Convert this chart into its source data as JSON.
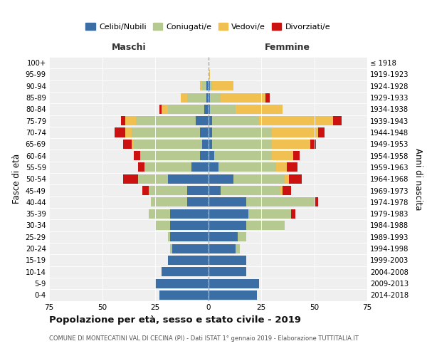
{
  "age_groups": [
    "0-4",
    "5-9",
    "10-14",
    "15-19",
    "20-24",
    "25-29",
    "30-34",
    "35-39",
    "40-44",
    "45-49",
    "50-54",
    "55-59",
    "60-64",
    "65-69",
    "70-74",
    "75-79",
    "80-84",
    "85-89",
    "90-94",
    "95-99",
    "100+"
  ],
  "birth_years": [
    "2014-2018",
    "2009-2013",
    "2004-2008",
    "1999-2003",
    "1994-1998",
    "1989-1993",
    "1984-1988",
    "1979-1983",
    "1974-1978",
    "1969-1973",
    "1964-1968",
    "1959-1963",
    "1954-1958",
    "1949-1953",
    "1944-1948",
    "1939-1943",
    "1934-1938",
    "1929-1933",
    "1924-1928",
    "1919-1923",
    "≤ 1918"
  ],
  "males": {
    "celibi": [
      23,
      25,
      22,
      19,
      17,
      18,
      18,
      18,
      10,
      10,
      19,
      8,
      4,
      3,
      4,
      6,
      2,
      1,
      1,
      0,
      0
    ],
    "coniugati": [
      0,
      0,
      0,
      0,
      1,
      1,
      7,
      10,
      17,
      18,
      14,
      22,
      28,
      32,
      32,
      28,
      17,
      9,
      2,
      0,
      0
    ],
    "vedovi": [
      0,
      0,
      0,
      0,
      0,
      0,
      0,
      0,
      0,
      0,
      0,
      0,
      0,
      1,
      3,
      5,
      3,
      3,
      1,
      0,
      0
    ],
    "divorziati": [
      0,
      0,
      0,
      0,
      0,
      0,
      0,
      0,
      0,
      3,
      7,
      3,
      3,
      4,
      5,
      2,
      1,
      0,
      0,
      0,
      0
    ]
  },
  "females": {
    "nubili": [
      23,
      24,
      18,
      18,
      13,
      14,
      18,
      19,
      18,
      6,
      12,
      5,
      3,
      2,
      2,
      2,
      1,
      1,
      1,
      0,
      0
    ],
    "coniugate": [
      0,
      0,
      0,
      0,
      2,
      4,
      18,
      20,
      32,
      28,
      24,
      27,
      27,
      28,
      28,
      22,
      12,
      5,
      1,
      0,
      0
    ],
    "vedove": [
      0,
      0,
      0,
      0,
      0,
      0,
      0,
      0,
      0,
      1,
      2,
      5,
      10,
      18,
      22,
      35,
      22,
      21,
      10,
      1,
      0
    ],
    "divorziate": [
      0,
      0,
      0,
      0,
      0,
      0,
      0,
      2,
      2,
      4,
      6,
      5,
      3,
      3,
      3,
      4,
      0,
      2,
      0,
      0,
      0
    ]
  },
  "colors": {
    "celibi": "#3a6ea5",
    "coniugati": "#b5c990",
    "vedovi": "#f0c050",
    "divorziati": "#cc1111"
  },
  "xlim": 75,
  "title": "Popolazione per età, sesso e stato civile - 2019",
  "subtitle": "COMUNE DI MONTECATINI VAL DI CECINA (PI) - Dati ISTAT 1° gennaio 2019 - Elaborazione TUTTITALIA.IT",
  "ylabel_left": "Fasce di età",
  "ylabel_right": "Anni di nascita",
  "label_maschi": "Maschi",
  "label_femmine": "Femmine",
  "legend_labels": [
    "Celibi/Nubili",
    "Coniugati/e",
    "Vedovi/e",
    "Divorziati/e"
  ],
  "bg_color": "#efefef"
}
